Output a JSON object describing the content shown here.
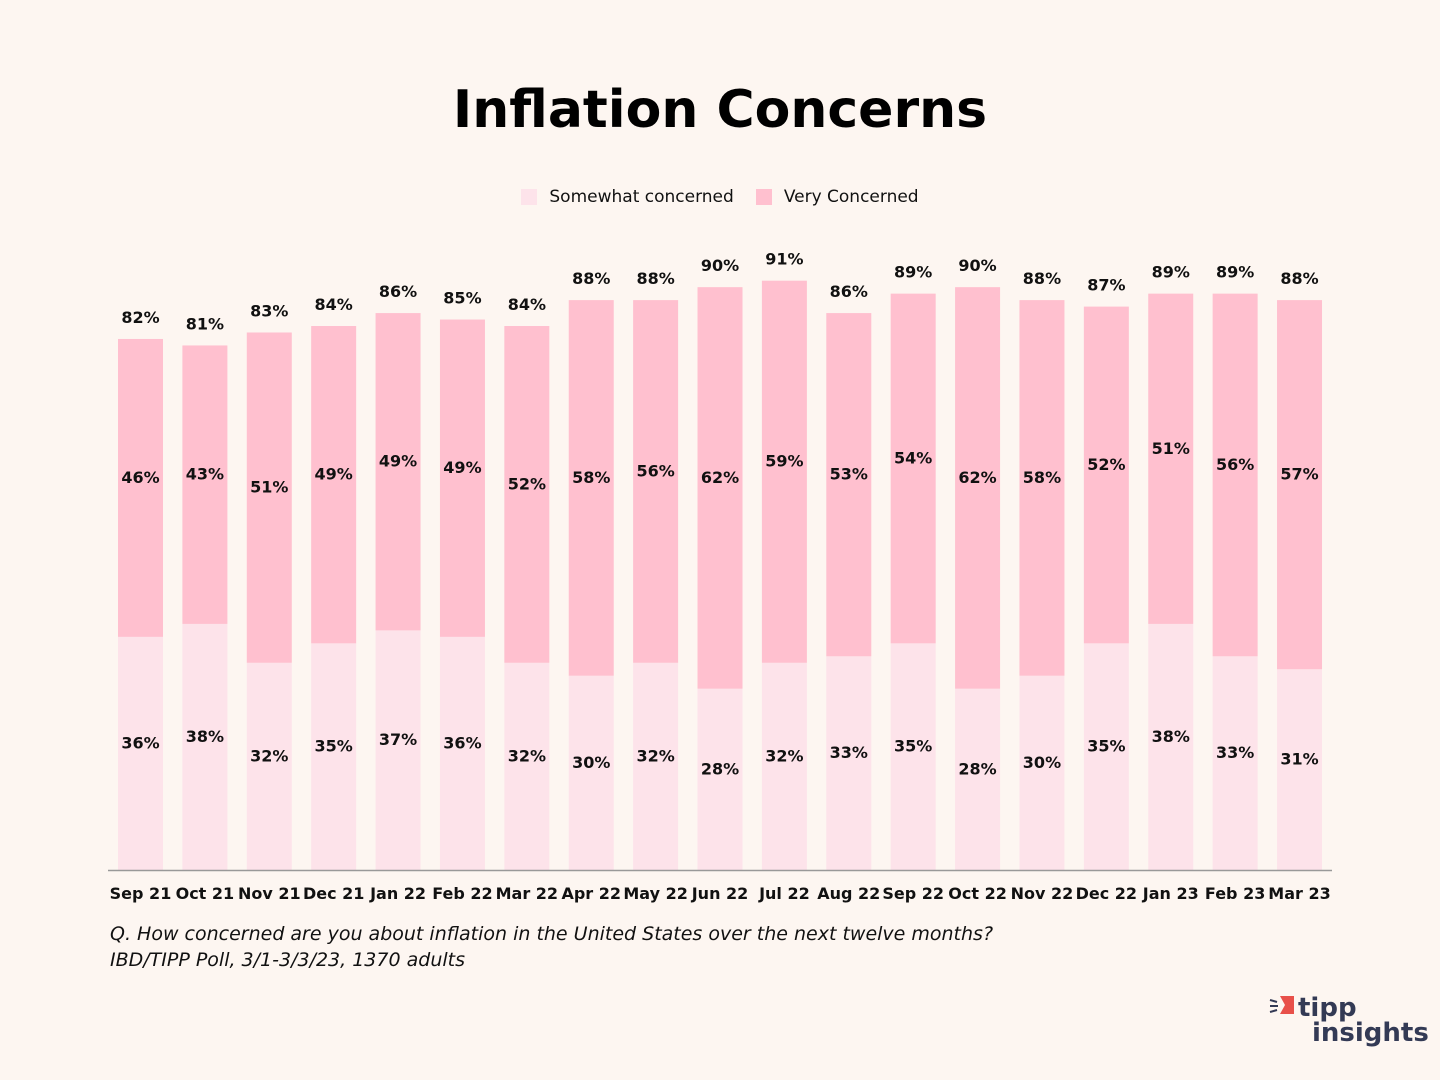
{
  "chart_data": {
    "type": "bar",
    "stacked": true,
    "title": "Inflation Concerns",
    "categories": [
      "Sep 21",
      "Oct 21",
      "Nov 21",
      "Dec 21",
      "Jan 22",
      "Feb 22",
      "Mar 22",
      "Apr 22",
      "May 22",
      "Jun 22",
      "Jul 22",
      "Aug 22",
      "Sep 22",
      "Oct 22",
      "Nov 22",
      "Dec 22",
      "Jan 23",
      "Feb 23",
      "Mar 23"
    ],
    "series": [
      {
        "name": "Somewhat concerned",
        "color": "#fde3ea",
        "values": [
          36,
          38,
          32,
          35,
          37,
          36,
          32,
          30,
          32,
          28,
          32,
          33,
          35,
          28,
          30,
          35,
          38,
          33,
          31
        ]
      },
      {
        "name": "Very Concerned",
        "color": "#ffc0cf",
        "values": [
          46,
          43,
          51,
          49,
          49,
          49,
          52,
          58,
          56,
          62,
          59,
          53,
          54,
          62,
          58,
          52,
          51,
          56,
          57
        ]
      }
    ],
    "totals": [
      82,
      81,
      83,
      84,
      86,
      85,
      84,
      88,
      88,
      90,
      91,
      86,
      89,
      90,
      88,
      87,
      89,
      89,
      88
    ],
    "value_suffix": "%",
    "ylim": [
      0,
      100
    ],
    "legend_position": "top-center",
    "grid": false
  },
  "note": {
    "question": "Q. How concerned are you about inflation in the United States over the next twelve months?",
    "source": "IBD/TIPP Poll, 3/1-3/3/23, 1370 adults"
  },
  "logo": {
    "line1": "tipp",
    "line2": "insights",
    "accent": "#e8504a",
    "color": "#333a55"
  }
}
